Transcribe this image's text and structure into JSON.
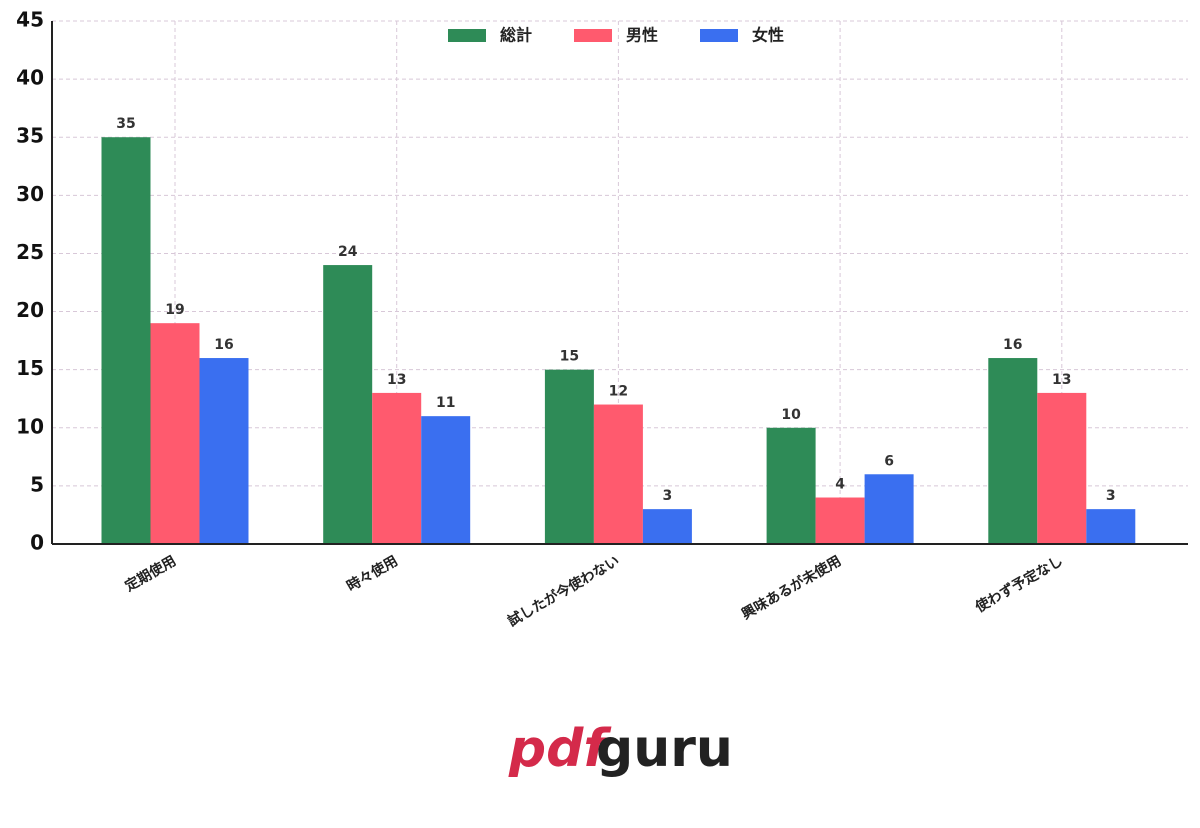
{
  "chart_data": {
    "type": "bar",
    "categories": [
      "定期使用",
      "時々使用",
      "試したが今使わない",
      "興味あるが未使用",
      "使わず予定なし"
    ],
    "series": [
      {
        "name": "総計",
        "color": "#2e8b57",
        "values": [
          35,
          24,
          15,
          10,
          16
        ]
      },
      {
        "name": "男性",
        "color": "#ff5a6e",
        "values": [
          19,
          13,
          12,
          4,
          13
        ]
      },
      {
        "name": "女性",
        "color": "#3a6ff0",
        "values": [
          16,
          11,
          3,
          6,
          3
        ]
      }
    ],
    "ylim": [
      0,
      45
    ],
    "yticks": [
      0,
      5,
      10,
      15,
      20,
      25,
      30,
      35,
      40,
      45
    ],
    "grid": true,
    "legend": "top"
  },
  "logo": [
    "pdf",
    "guru"
  ]
}
